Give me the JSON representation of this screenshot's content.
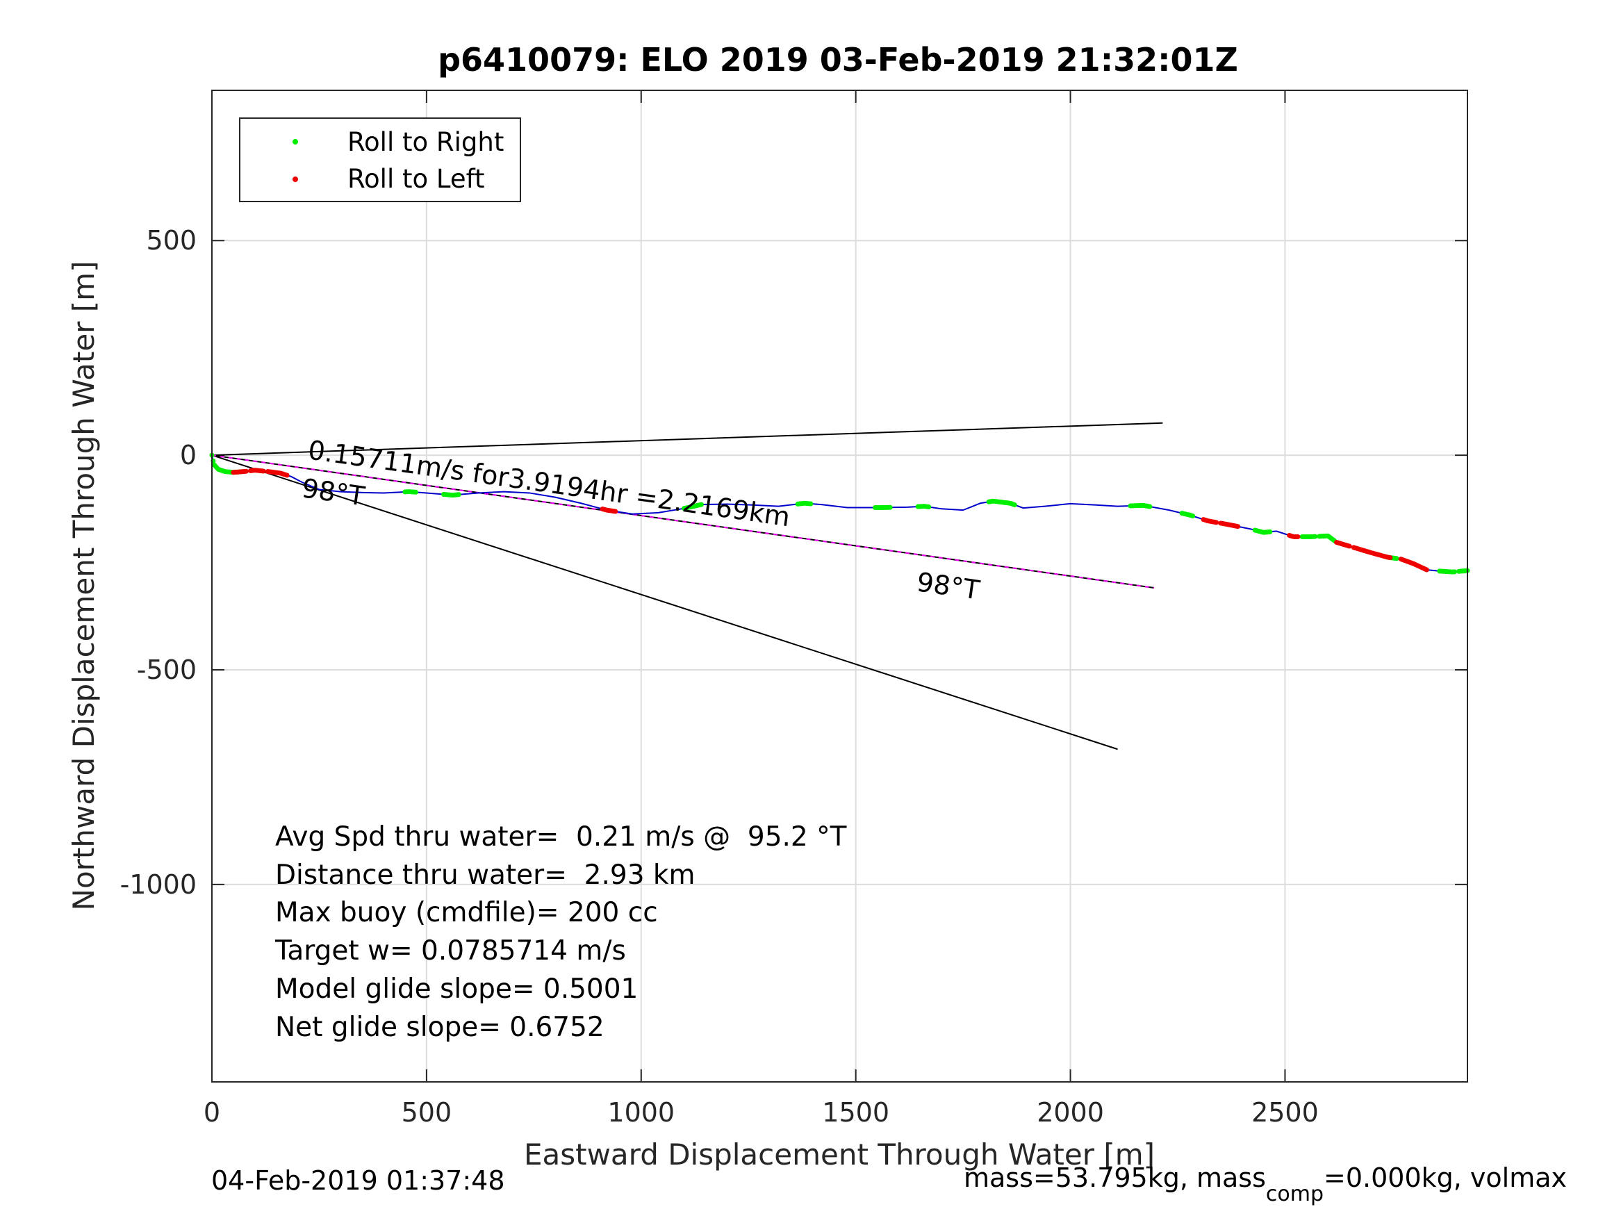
{
  "chart_data": {
    "type": "line",
    "title": "p6410079: ELO 2019 03-Feb-2019 21:32:01Z",
    "xlabel": "Eastward Displacement Through Water [m]",
    "ylabel": "Northward Displacement Through Water [m]",
    "xlim": [
      0,
      2925
    ],
    "ylim": [
      -1460,
      850
    ],
    "xticks": [
      0,
      500,
      1000,
      1500,
      2000,
      2500
    ],
    "xtick_labels": [
      "0",
      "500",
      "1000",
      "1500",
      "2000",
      "2500"
    ],
    "yticks": [
      500,
      0,
      -500,
      -1000
    ],
    "ytick_labels": [
      "500",
      "0",
      "-500",
      "-1000"
    ],
    "grid": true,
    "legend": {
      "position": "top-left",
      "entries": [
        {
          "label": "Roll to Right",
          "color": "#00ee00"
        },
        {
          "label": "Roll to Left",
          "color": "#ee0000"
        }
      ]
    },
    "colors": {
      "track": "#0000cc",
      "roll_right": "#00ee00",
      "roll_left": "#ee0000",
      "heading_line": "#000000",
      "current_line": "#ee00ee"
    },
    "track": {
      "x": [
        0,
        5,
        15,
        30,
        50,
        75,
        100,
        130,
        160,
        185,
        210,
        250,
        300,
        350,
        400,
        460,
        500,
        560,
        620,
        680,
        740,
        800,
        860,
        920,
        980,
        1040,
        1100,
        1140,
        1200,
        1260,
        1320,
        1380,
        1420,
        1480,
        1560,
        1620,
        1660,
        1700,
        1750,
        1790,
        1820,
        1860,
        1890,
        1940,
        2000,
        2060,
        2110,
        2170,
        2230,
        2280,
        2320,
        2370,
        2420,
        2450,
        2480,
        2520,
        2560,
        2600,
        2620,
        2650,
        2700,
        2740,
        2770,
        2800,
        2830,
        2860,
        2890,
        2925
      ],
      "y": [
        0,
        -22,
        -33,
        -38,
        -40,
        -38,
        -35,
        -38,
        -42,
        -50,
        -63,
        -80,
        -85,
        -87,
        -88,
        -85,
        -88,
        -93,
        -88,
        -85,
        -88,
        -98,
        -112,
        -128,
        -137,
        -134,
        -124,
        -115,
        -114,
        -116,
        -119,
        -112,
        -115,
        -122,
        -122,
        -121,
        -119,
        -125,
        -128,
        -112,
        -107,
        -112,
        -123,
        -119,
        -113,
        -116,
        -119,
        -117,
        -128,
        -140,
        -153,
        -162,
        -172,
        -180,
        -177,
        -190,
        -190,
        -188,
        -203,
        -212,
        -227,
        -238,
        -242,
        -253,
        -267,
        -270,
        -272,
        -269
      ]
    },
    "roll_right_segments": [
      {
        "x": [
          0,
          20,
          50,
          70
        ]
      },
      {
        "x": [
          450,
          475
        ]
      },
      {
        "x": [
          540,
          575
        ]
      },
      {
        "x": [
          1100,
          1140
        ]
      },
      {
        "x": [
          1365,
          1395
        ]
      },
      {
        "x": [
          1545,
          1580
        ]
      },
      {
        "x": [
          1645,
          1670
        ]
      },
      {
        "x": [
          1810,
          1870
        ]
      },
      {
        "x": [
          2140,
          2185
        ]
      },
      {
        "x": [
          2260,
          2285
        ]
      },
      {
        "x": [
          2430,
          2465
        ]
      },
      {
        "x": [
          2540,
          2570
        ]
      },
      {
        "x": [
          2580,
          2615
        ]
      },
      {
        "x": [
          2735,
          2760
        ]
      },
      {
        "x": [
          2860,
          2895
        ]
      },
      {
        "x": [
          2905,
          2925
        ]
      }
    ],
    "roll_left_segments": [
      {
        "x": [
          50,
          80
        ]
      },
      {
        "x": [
          90,
          120
        ]
      },
      {
        "x": [
          130,
          175
        ]
      },
      {
        "x": [
          910,
          940
        ]
      },
      {
        "x": [
          2310,
          2340
        ]
      },
      {
        "x": [
          2350,
          2390
        ]
      },
      {
        "x": [
          2510,
          2530
        ]
      },
      {
        "x": [
          2620,
          2650
        ]
      },
      {
        "x": [
          2660,
          2700
        ]
      },
      {
        "x": [
          2705,
          2745
        ]
      },
      {
        "x": [
          2770,
          2830
        ]
      }
    ],
    "lines": [
      {
        "name": "upper-bound",
        "x": [
          0,
          2215
        ],
        "y": [
          0,
          75
        ],
        "color": "#000000"
      },
      {
        "name": "lower-bound",
        "x": [
          0,
          2110
        ],
        "y": [
          0,
          -685
        ],
        "color": "#000000"
      },
      {
        "name": "avg-heading",
        "x": [
          0,
          2195
        ],
        "y": [
          0,
          -309
        ],
        "color": "#000000"
      },
      {
        "name": "current-overlay",
        "x": [
          0,
          2195
        ],
        "y": [
          0,
          -309
        ],
        "color": "#ee00ee"
      }
    ],
    "annotations": {
      "heading_speed": "0.15711m/s for3.9194hr =2.2169km",
      "heading_near": "98°T",
      "heading_far": "98°T"
    },
    "stats": [
      "Avg Spd thru water=  0.21 m/s @  95.2 °T",
      "Distance thru water=  2.93 km",
      "Max buoy (cmdfile)= 200 cc",
      "Target w= 0.0785714 m/s",
      "Model glide slope= 0.5001",
      "Net glide slope= 0.6752"
    ]
  },
  "footer": {
    "timestamp": "04-Feb-2019 01:37:48",
    "mass_prefix": "mass=53.795kg, mass",
    "mass_sub": "comp",
    "mass_suffix": "=0.000kg, volmax"
  }
}
